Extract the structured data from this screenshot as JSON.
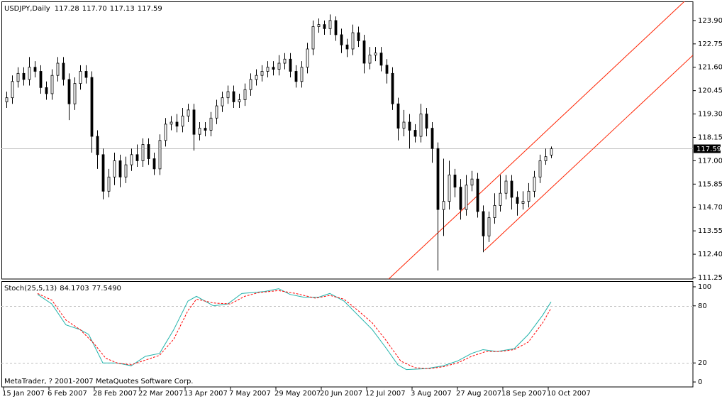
{
  "chart_data": [
    {
      "type": "candlestick",
      "title": "USDJPY,Daily",
      "header_values": [
        117.28,
        {
          "value": 117.7,
          "label": "117.70"
        },
        117.13,
        117.59
      ],
      "xlim": [
        -0.75,
        243
      ],
      "ylim": [
        111.18,
        124.84
      ],
      "yticks": [
        {
          "value": 123.9,
          "label": "123.90"
        },
        122.75,
        {
          "value": 121.6,
          "label": "121.60"
        },
        120.45,
        {
          "value": 119.3,
          "label": "119.30"
        },
        118.15,
        {
          "value": 117,
          "label": "117.00"
        },
        115.85,
        {
          "value": 114.7,
          "label": "114.70"
        },
        113.55,
        {
          "value": 112.4,
          "label": "112.40"
        },
        111.25
      ],
      "last_price": 117.59,
      "color": "#000000",
      "price_line_color": "#c0c0c0",
      "candles": {
        "x": [
          1,
          3,
          5,
          7,
          9,
          11,
          13,
          15,
          17,
          19,
          21,
          23,
          25,
          27,
          29,
          31,
          33,
          35,
          37,
          39,
          41,
          43,
          45,
          47,
          49,
          51,
          53,
          55,
          57,
          59,
          61,
          63,
          65,
          67,
          69,
          71,
          73,
          75,
          77,
          79,
          81,
          83,
          85,
          87,
          89,
          91,
          93,
          95,
          97,
          99,
          101,
          103,
          105,
          107,
          109,
          111,
          113,
          115,
          117,
          119,
          121,
          123,
          125,
          127,
          129,
          131,
          133,
          135,
          137,
          139,
          141,
          143,
          145,
          147,
          149,
          151,
          153,
          155,
          157,
          159,
          161,
          163,
          165,
          167,
          169,
          171,
          173,
          175,
          177,
          179,
          181,
          183,
          185,
          187,
          189,
          191,
          193
        ],
        "open": [
          119.9,
          120.1,
          120.9,
          121.3,
          121.0,
          121.6,
          121.4,
          120.6,
          120.3,
          121.2,
          121.8,
          121.0,
          119.8,
          120.8,
          121.4,
          121.1,
          118.2,
          117.3,
          115.5,
          116.2,
          117.0,
          116.2,
          116.8,
          117.3,
          117.0,
          117.8,
          117.1,
          116.6,
          118.0,
          118.8,
          118.9,
          118.7,
          119.2,
          119.5,
          118.3,
          118.6,
          118.5,
          119.1,
          119.7,
          120.1,
          120.4,
          119.9,
          120.0,
          120.5,
          121.0,
          121.2,
          121.4,
          121.6,
          121.5,
          121.8,
          122.0,
          121.4,
          120.9,
          121.6,
          122.5,
          123.6,
          123.7,
          123.5,
          123.9,
          123.2,
          122.7,
          122.5,
          123.3,
          122.9,
          121.8,
          122.2,
          122.3,
          121.7,
          121.3,
          119.8,
          118.6,
          118.9,
          118.5,
          118.2,
          119.3,
          118.6,
          117.6,
          114.6,
          115.0,
          116.3,
          115.7,
          114.6,
          115.8,
          116.1,
          114.5,
          113.3,
          114.2,
          114.8,
          115.4,
          116.0,
          115.2,
          114.9,
          115.0,
          115.5,
          116.2,
          117.0,
          117.28
        ],
        "high": [
          120.4,
          121.2,
          121.6,
          121.6,
          122.1,
          121.9,
          121.7,
          120.9,
          121.5,
          122.1,
          122.1,
          121.3,
          121.1,
          121.7,
          121.7,
          121.4,
          118.5,
          117.6,
          116.6,
          117.4,
          117.3,
          117.2,
          117.6,
          117.8,
          118.1,
          118.1,
          117.4,
          118.3,
          119.1,
          119.2,
          119.3,
          119.6,
          119.8,
          119.8,
          118.9,
          118.9,
          119.4,
          120.0,
          120.4,
          120.7,
          120.7,
          120.3,
          120.8,
          121.3,
          121.5,
          121.7,
          121.9,
          121.9,
          122.2,
          122.3,
          122.3,
          121.7,
          121.9,
          122.8,
          123.9,
          124.0,
          123.9,
          124.2,
          124.1,
          123.5,
          123.0,
          123.7,
          123.6,
          123.2,
          122.6,
          122.6,
          122.6,
          122.0,
          121.6,
          120.1,
          119.5,
          119.3,
          118.8,
          119.8,
          119.6,
          118.9,
          117.9,
          117.1,
          117.0,
          116.6,
          116.1,
          116.3,
          116.5,
          116.4,
          114.8,
          114.5,
          115.4,
          116.3,
          116.3,
          116.3,
          115.5,
          115.5,
          115.9,
          116.5,
          117.3,
          117.6,
          117.7
        ],
        "low": [
          119.6,
          119.8,
          120.6,
          120.7,
          120.7,
          121.1,
          120.3,
          120.0,
          120.0,
          120.9,
          120.7,
          119.0,
          119.5,
          120.5,
          120.8,
          117.4,
          116.6,
          115.1,
          115.2,
          115.8,
          115.7,
          115.9,
          116.5,
          116.7,
          116.7,
          116.8,
          116.3,
          116.3,
          117.7,
          118.5,
          118.4,
          118.4,
          118.9,
          117.5,
          118.0,
          118.2,
          118.2,
          118.8,
          119.4,
          119.8,
          119.6,
          119.6,
          119.7,
          120.2,
          120.7,
          120.9,
          121.1,
          121.2,
          121.2,
          121.5,
          121.1,
          120.6,
          120.6,
          121.3,
          122.2,
          123.3,
          123.2,
          123.2,
          122.9,
          122.3,
          122.1,
          122.2,
          122.6,
          121.3,
          121.5,
          121.9,
          121.4,
          120.8,
          119.5,
          118.0,
          118.2,
          117.6,
          117.9,
          117.9,
          118.2,
          116.9,
          111.6,
          113.3,
          114.6,
          115.2,
          114.1,
          114.3,
          115.5,
          114.2,
          112.5,
          113.0,
          113.9,
          114.5,
          115.1,
          114.6,
          114.3,
          114.6,
          114.7,
          115.2,
          115.9,
          116.8,
          117.13
        ],
        "close": [
          120.1,
          120.9,
          121.3,
          121.0,
          121.6,
          121.4,
          120.6,
          120.3,
          121.2,
          121.8,
          121.0,
          119.8,
          120.8,
          121.4,
          121.1,
          118.2,
          117.3,
          115.5,
          116.2,
          117.0,
          116.2,
          116.8,
          117.3,
          117.0,
          117.8,
          117.1,
          116.6,
          118.0,
          118.8,
          118.9,
          118.7,
          119.2,
          119.5,
          118.3,
          118.6,
          118.5,
          119.1,
          119.7,
          120.1,
          120.4,
          119.9,
          120.0,
          120.5,
          121.0,
          121.2,
          121.4,
          121.6,
          121.5,
          121.8,
          122.0,
          121.4,
          120.9,
          121.6,
          122.5,
          123.6,
          123.7,
          123.5,
          123.9,
          123.2,
          122.7,
          122.5,
          123.3,
          122.9,
          121.8,
          122.2,
          122.3,
          121.7,
          121.3,
          119.8,
          118.6,
          118.9,
          118.5,
          118.2,
          119.3,
          118.6,
          117.6,
          114.6,
          115.0,
          116.3,
          115.7,
          114.6,
          115.8,
          116.1,
          114.5,
          113.3,
          114.2,
          114.8,
          115.4,
          116.0,
          115.2,
          114.9,
          115.0,
          115.5,
          116.2,
          117.0,
          117.2,
          117.59
        ]
      },
      "trendline_color": "#ff2200",
      "trendlines": [
        {
          "x": [
            135.75,
            240
          ],
          "y": [
            111.18,
            124.84
          ]
        },
        {
          "x": [
            169.5,
            243
          ],
          "y": [
            112.58,
            122.19
          ]
        }
      ]
    },
    {
      "type": "line",
      "title": "Stoch(25,5,13)",
      "header_values": [
        84.1703,
        {
          "value": 77.549,
          "label": "77.5490"
        }
      ],
      "note": "MetaTrader, ? 2001-2007 MetaQuotes Software Corp.",
      "xlim": [
        -0.75,
        243
      ],
      "ylim": [
        -5.2,
        105.2
      ],
      "yticks": [
        0,
        20,
        80,
        100
      ],
      "levels": [
        20,
        80
      ],
      "level_color": "#c0c0c0",
      "xticks": [
        {
          "value": 0,
          "label": "15 Jan 2007"
        },
        {
          "value": 16,
          "label": "6 Feb 2007"
        },
        {
          "value": 32,
          "label": "28 Feb 2007"
        },
        {
          "value": 48,
          "label": "22 Mar 2007"
        },
        {
          "value": 64,
          "label": "13 Apr 2007"
        },
        {
          "value": 80,
          "label": "7 May 2007"
        },
        {
          "value": 96,
          "label": "29 May 2007"
        },
        {
          "value": 112,
          "label": "20 Jun 2007"
        },
        {
          "value": 128,
          "label": "12 Jul 2007"
        },
        {
          "value": 144,
          "label": "3 Aug 2007"
        },
        {
          "value": 160,
          "label": "27 Aug 2007"
        },
        {
          "value": 176,
          "label": "18 Sep 2007"
        },
        {
          "value": 192,
          "label": "10 Oct 2007"
        }
      ],
      "series": [
        {
          "color": "#20b2aa",
          "dashed": false,
          "x": [
            12,
            17,
            22,
            27,
            30,
            35,
            40,
            45,
            50,
            55,
            60,
            65,
            68,
            74,
            79,
            84,
            92,
            97,
            101,
            106,
            111,
            115,
            120,
            125,
            130,
            135,
            139,
            142,
            149,
            155,
            160,
            165,
            169,
            174,
            180,
            185,
            190,
            193
          ],
          "values": [
            92,
            82,
            60,
            55,
            50,
            20,
            20,
            17,
            27,
            30,
            55,
            85,
            90,
            80,
            82,
            93,
            95,
            98,
            92,
            89,
            89,
            93,
            85,
            70,
            55,
            35,
            18,
            13,
            14,
            17,
            22,
            30,
            34,
            32,
            35,
            50,
            70,
            84.1703
          ]
        },
        {
          "color": "#ff0000",
          "dashed": true,
          "x": [
            12,
            17,
            22,
            27,
            32,
            36,
            40,
            45,
            50,
            55,
            60,
            65,
            68,
            74,
            80,
            85,
            90,
            97,
            103,
            110,
            115,
            120,
            125,
            130,
            135,
            140,
            145,
            150,
            155,
            160,
            165,
            170,
            175,
            180,
            185,
            190,
            193
          ],
          "values": [
            93,
            86,
            65,
            55,
            40,
            25,
            20,
            18,
            23,
            28,
            45,
            75,
            87,
            83,
            82,
            90,
            94,
            96,
            93,
            88,
            91,
            87,
            75,
            62,
            43,
            22,
            15,
            14,
            16,
            20,
            27,
            32,
            32,
            34,
            42,
            62,
            77.549
          ]
        }
      ]
    }
  ]
}
